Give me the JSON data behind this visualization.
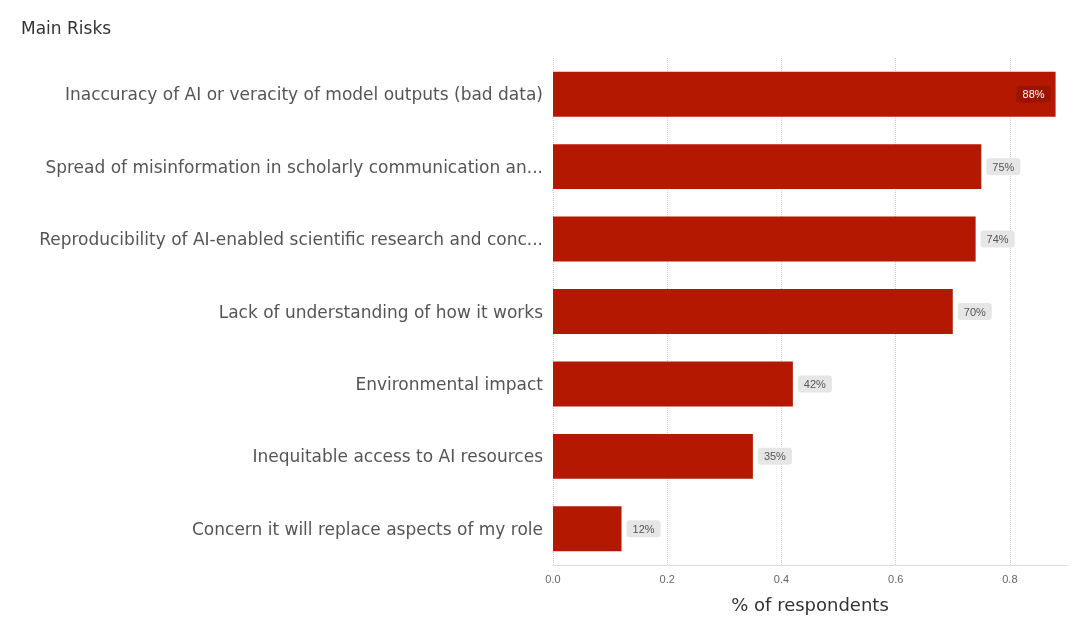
{
  "chart_data": {
    "type": "bar",
    "orientation": "horizontal",
    "title": "Main Risks",
    "xlabel": "% of respondents",
    "categories": [
      "Inaccuracy of AI or veracity of model outputs (bad data)",
      "Spread of misinformation in scholarly communication an...",
      "Reproducibility of AI-enabled scientific research and conc...",
      "Lack of understanding of how it works",
      "Environmental impact",
      "Inequitable access to AI resources",
      "Concern it will replace aspects of my role"
    ],
    "values": [
      0.88,
      0.75,
      0.74,
      0.7,
      0.42,
      0.35,
      0.12
    ],
    "value_labels": [
      "88%",
      "75%",
      "74%",
      "70%",
      "42%",
      "35%",
      "12%"
    ],
    "color": "#b51800",
    "xlim": [
      0,
      0.9
    ],
    "xticks": [
      {
        "value": 0,
        "label": "0.0"
      },
      {
        "value": 0.2,
        "label": "0.2"
      },
      {
        "value": 0.4,
        "label": "0.4"
      },
      {
        "value": 0.6,
        "label": "0.6"
      },
      {
        "value": 0.8,
        "label": "0.8"
      }
    ],
    "grid": "x"
  }
}
